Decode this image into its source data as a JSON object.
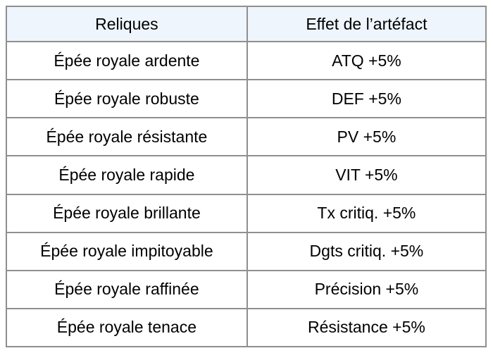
{
  "table": {
    "headers": {
      "relic": "Reliques",
      "effect": "Effet de l’artéfact"
    },
    "rows": [
      {
        "relic": "Épée royale ardente",
        "effect": "ATQ +5%"
      },
      {
        "relic": "Épée royale robuste",
        "effect": "DEF +5%"
      },
      {
        "relic": "Épée royale résistante",
        "effect": "PV +5%"
      },
      {
        "relic": "Épée royale rapide",
        "effect": "VIT +5%"
      },
      {
        "relic": "Épée royale brillante",
        "effect": "Tx critiq. +5%"
      },
      {
        "relic": "Épée royale impitoyable",
        "effect": "Dgts critiq. +5%"
      },
      {
        "relic": "Épée royale raffinée",
        "effect": "Précision +5%"
      },
      {
        "relic": "Épée royale tenace",
        "effect": "Résistance +5%"
      }
    ],
    "colors": {
      "header_bg": "#eef5fc",
      "border": "#8f8f8f",
      "text": "#000000",
      "row_bg": "#ffffff"
    }
  }
}
